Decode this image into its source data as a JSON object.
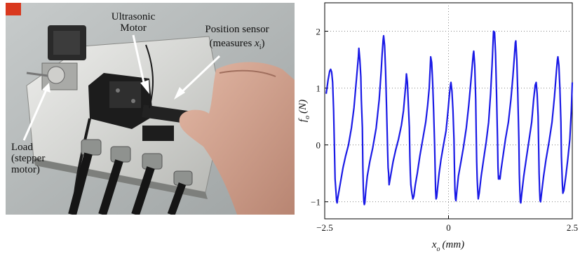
{
  "photo": {
    "labels": {
      "ultrasonic_line1": "Ultrasonic",
      "ultrasonic_line2": "Motor",
      "position_line1": "Position sensor",
      "position_line2_prefix": "(measures ",
      "position_var": "x",
      "position_sub": "i",
      "position_close": ")",
      "load_line1": "Load",
      "load_line2": "(stepper",
      "load_line3": "motor)"
    }
  },
  "chart_data": {
    "type": "line",
    "ylabel_var": "f",
    "ylabel_sub": "o",
    "ylabel_unit": "(N)",
    "xlabel_var": "x",
    "xlabel_sub": "o",
    "xlabel_unit": "(mm)",
    "xlim": [
      -2.5,
      2.5
    ],
    "ylim": [
      -1.3,
      2.5
    ],
    "xticks": [
      "−2.5",
      "0",
      "2.5"
    ],
    "xtick_values": [
      -2.5,
      0,
      2.5
    ],
    "yticks": [
      "−1",
      "0",
      "1",
      "2"
    ],
    "ytick_values": [
      -1,
      0,
      1,
      2
    ],
    "grid": true,
    "line_color": "#1a1ae6",
    "series": [
      {
        "values": [
          [
            -2.47,
            0.9
          ],
          [
            -2.43,
            1.15
          ],
          [
            -2.4,
            1.3
          ],
          [
            -2.38,
            1.33
          ],
          [
            -2.36,
            1.28
          ],
          [
            -2.34,
            1.1
          ],
          [
            -2.32,
            0.6
          ],
          [
            -2.3,
            -0.2
          ],
          [
            -2.29,
            -0.6
          ],
          [
            -2.27,
            -0.85
          ],
          [
            -2.26,
            -0.98
          ],
          [
            -2.25,
            -1.02
          ],
          [
            -2.24,
            -0.95
          ],
          [
            -2.22,
            -0.85
          ],
          [
            -2.2,
            -0.75
          ],
          [
            -2.17,
            -0.6
          ],
          [
            -2.13,
            -0.4
          ],
          [
            -2.08,
            -0.2
          ],
          [
            -2.02,
            0.0
          ],
          [
            -1.96,
            0.3
          ],
          [
            -1.91,
            0.65
          ],
          [
            -1.88,
            0.95
          ],
          [
            -1.85,
            1.25
          ],
          [
            -1.83,
            1.45
          ],
          [
            -1.82,
            1.55
          ],
          [
            -1.81,
            1.7
          ],
          [
            -1.79,
            1.5
          ],
          [
            -1.77,
            1.2
          ],
          [
            -1.76,
            0.8
          ],
          [
            -1.74,
            0.3
          ],
          [
            -1.73,
            -0.4
          ],
          [
            -1.72,
            -0.8
          ],
          [
            -1.71,
            -1.0
          ],
          [
            -1.7,
            -1.05
          ],
          [
            -1.69,
            -1.02
          ],
          [
            -1.67,
            -0.8
          ],
          [
            -1.64,
            -0.55
          ],
          [
            -1.59,
            -0.3
          ],
          [
            -1.53,
            -0.05
          ],
          [
            -1.46,
            0.3
          ],
          [
            -1.4,
            0.8
          ],
          [
            -1.36,
            1.3
          ],
          [
            -1.34,
            1.6
          ],
          [
            -1.32,
            1.85
          ],
          [
            -1.31,
            1.92
          ],
          [
            -1.29,
            1.75
          ],
          [
            -1.27,
            1.3
          ],
          [
            -1.25,
            0.6
          ],
          [
            -1.23,
            -0.1
          ],
          [
            -1.22,
            -0.4
          ],
          [
            -1.21,
            -0.5
          ],
          [
            -1.2,
            -0.7
          ],
          [
            -1.18,
            -0.6
          ],
          [
            -1.16,
            -0.5
          ],
          [
            -1.12,
            -0.3
          ],
          [
            -1.07,
            -0.1
          ],
          [
            -1.01,
            0.1
          ],
          [
            -0.95,
            0.35
          ],
          [
            -0.91,
            0.6
          ],
          [
            -0.88,
            0.9
          ],
          [
            -0.86,
            1.1
          ],
          [
            -0.85,
            1.25
          ],
          [
            -0.83,
            1.1
          ],
          [
            -0.81,
            0.7
          ],
          [
            -0.79,
            0.3
          ],
          [
            -0.78,
            -0.2
          ],
          [
            -0.77,
            -0.5
          ],
          [
            -0.76,
            -0.7
          ],
          [
            -0.74,
            -0.85
          ],
          [
            -0.72,
            -0.95
          ],
          [
            -0.7,
            -0.9
          ],
          [
            -0.67,
            -0.7
          ],
          [
            -0.63,
            -0.5
          ],
          [
            -0.58,
            -0.2
          ],
          [
            -0.52,
            0.1
          ],
          [
            -0.46,
            0.4
          ],
          [
            -0.42,
            0.7
          ],
          [
            -0.39,
            1.0
          ],
          [
            -0.37,
            1.35
          ],
          [
            -0.36,
            1.55
          ],
          [
            -0.34,
            1.45
          ],
          [
            -0.32,
            1.1
          ],
          [
            -0.3,
            0.6
          ],
          [
            -0.28,
            0.0
          ],
          [
            -0.27,
            -0.4
          ],
          [
            -0.26,
            -0.8
          ],
          [
            -0.25,
            -0.95
          ],
          [
            -0.24,
            -0.92
          ],
          [
            -0.22,
            -0.75
          ],
          [
            -0.19,
            -0.5
          ],
          [
            -0.15,
            -0.25
          ],
          [
            -0.1,
            0.0
          ],
          [
            -0.05,
            0.25
          ],
          [
            -0.01,
            0.6
          ],
          [
            0.02,
            0.9
          ],
          [
            0.04,
            1.05
          ],
          [
            0.05,
            1.1
          ],
          [
            0.07,
            0.95
          ],
          [
            0.09,
            0.6
          ],
          [
            0.11,
            0.1
          ],
          [
            0.12,
            -0.4
          ],
          [
            0.13,
            -0.8
          ],
          [
            0.14,
            -0.95
          ],
          [
            0.15,
            -0.98
          ],
          [
            0.17,
            -0.8
          ],
          [
            0.2,
            -0.55
          ],
          [
            0.25,
            -0.3
          ],
          [
            0.3,
            -0.05
          ],
          [
            0.36,
            0.3
          ],
          [
            0.41,
            0.7
          ],
          [
            0.45,
            1.1
          ],
          [
            0.48,
            1.4
          ],
          [
            0.5,
            1.6
          ],
          [
            0.51,
            1.65
          ],
          [
            0.53,
            1.4
          ],
          [
            0.55,
            0.8
          ],
          [
            0.56,
            0.2
          ],
          [
            0.57,
            -0.3
          ],
          [
            0.58,
            -0.6
          ],
          [
            0.59,
            -0.8
          ],
          [
            0.6,
            -0.95
          ],
          [
            0.62,
            -0.85
          ],
          [
            0.66,
            -0.55
          ],
          [
            0.71,
            -0.25
          ],
          [
            0.76,
            0.05
          ],
          [
            0.81,
            0.4
          ],
          [
            0.85,
            0.9
          ],
          [
            0.88,
            1.4
          ],
          [
            0.9,
            1.8
          ],
          [
            0.91,
            2.0
          ],
          [
            0.93,
            1.98
          ],
          [
            0.95,
            1.6
          ],
          [
            0.97,
            0.9
          ],
          [
            0.99,
            0.1
          ],
          [
            1.0,
            -0.4
          ],
          [
            1.01,
            -0.6
          ],
          [
            1.02,
            -0.55
          ],
          [
            1.04,
            -0.6
          ],
          [
            1.06,
            -0.45
          ],
          [
            1.1,
            -0.2
          ],
          [
            1.15,
            0.1
          ],
          [
            1.21,
            0.4
          ],
          [
            1.26,
            0.8
          ],
          [
            1.3,
            1.2
          ],
          [
            1.33,
            1.55
          ],
          [
            1.35,
            1.8
          ],
          [
            1.36,
            1.83
          ],
          [
            1.38,
            1.5
          ],
          [
            1.4,
            0.9
          ],
          [
            1.42,
            0.1
          ],
          [
            1.43,
            -0.5
          ],
          [
            1.44,
            -0.8
          ],
          [
            1.45,
            -1.0
          ],
          [
            1.46,
            -1.02
          ],
          [
            1.48,
            -0.85
          ],
          [
            1.52,
            -0.55
          ],
          [
            1.57,
            -0.25
          ],
          [
            1.62,
            0.05
          ],
          [
            1.68,
            0.4
          ],
          [
            1.72,
            0.8
          ],
          [
            1.75,
            1.05
          ],
          [
            1.77,
            1.1
          ],
          [
            1.79,
            0.9
          ],
          [
            1.81,
            0.5
          ],
          [
            1.82,
            0.0
          ],
          [
            1.83,
            -0.5
          ],
          [
            1.84,
            -0.8
          ],
          [
            1.85,
            -0.98
          ],
          [
            1.86,
            -1.0
          ],
          [
            1.88,
            -0.85
          ],
          [
            1.92,
            -0.55
          ],
          [
            1.97,
            -0.25
          ],
          [
            2.03,
            0.05
          ],
          [
            2.09,
            0.4
          ],
          [
            2.14,
            0.85
          ],
          [
            2.18,
            1.3
          ],
          [
            2.2,
            1.5
          ],
          [
            2.21,
            1.55
          ],
          [
            2.23,
            1.4
          ],
          [
            2.25,
            1.0
          ],
          [
            2.27,
            0.4
          ],
          [
            2.28,
            -0.2
          ],
          [
            2.3,
            -0.7
          ],
          [
            2.31,
            -0.85
          ],
          [
            2.33,
            -0.8
          ],
          [
            2.37,
            -0.55
          ],
          [
            2.41,
            -0.25
          ],
          [
            2.45,
            0.1
          ],
          [
            2.48,
            0.6
          ],
          [
            2.5,
            1.1
          ]
        ]
      }
    ]
  }
}
